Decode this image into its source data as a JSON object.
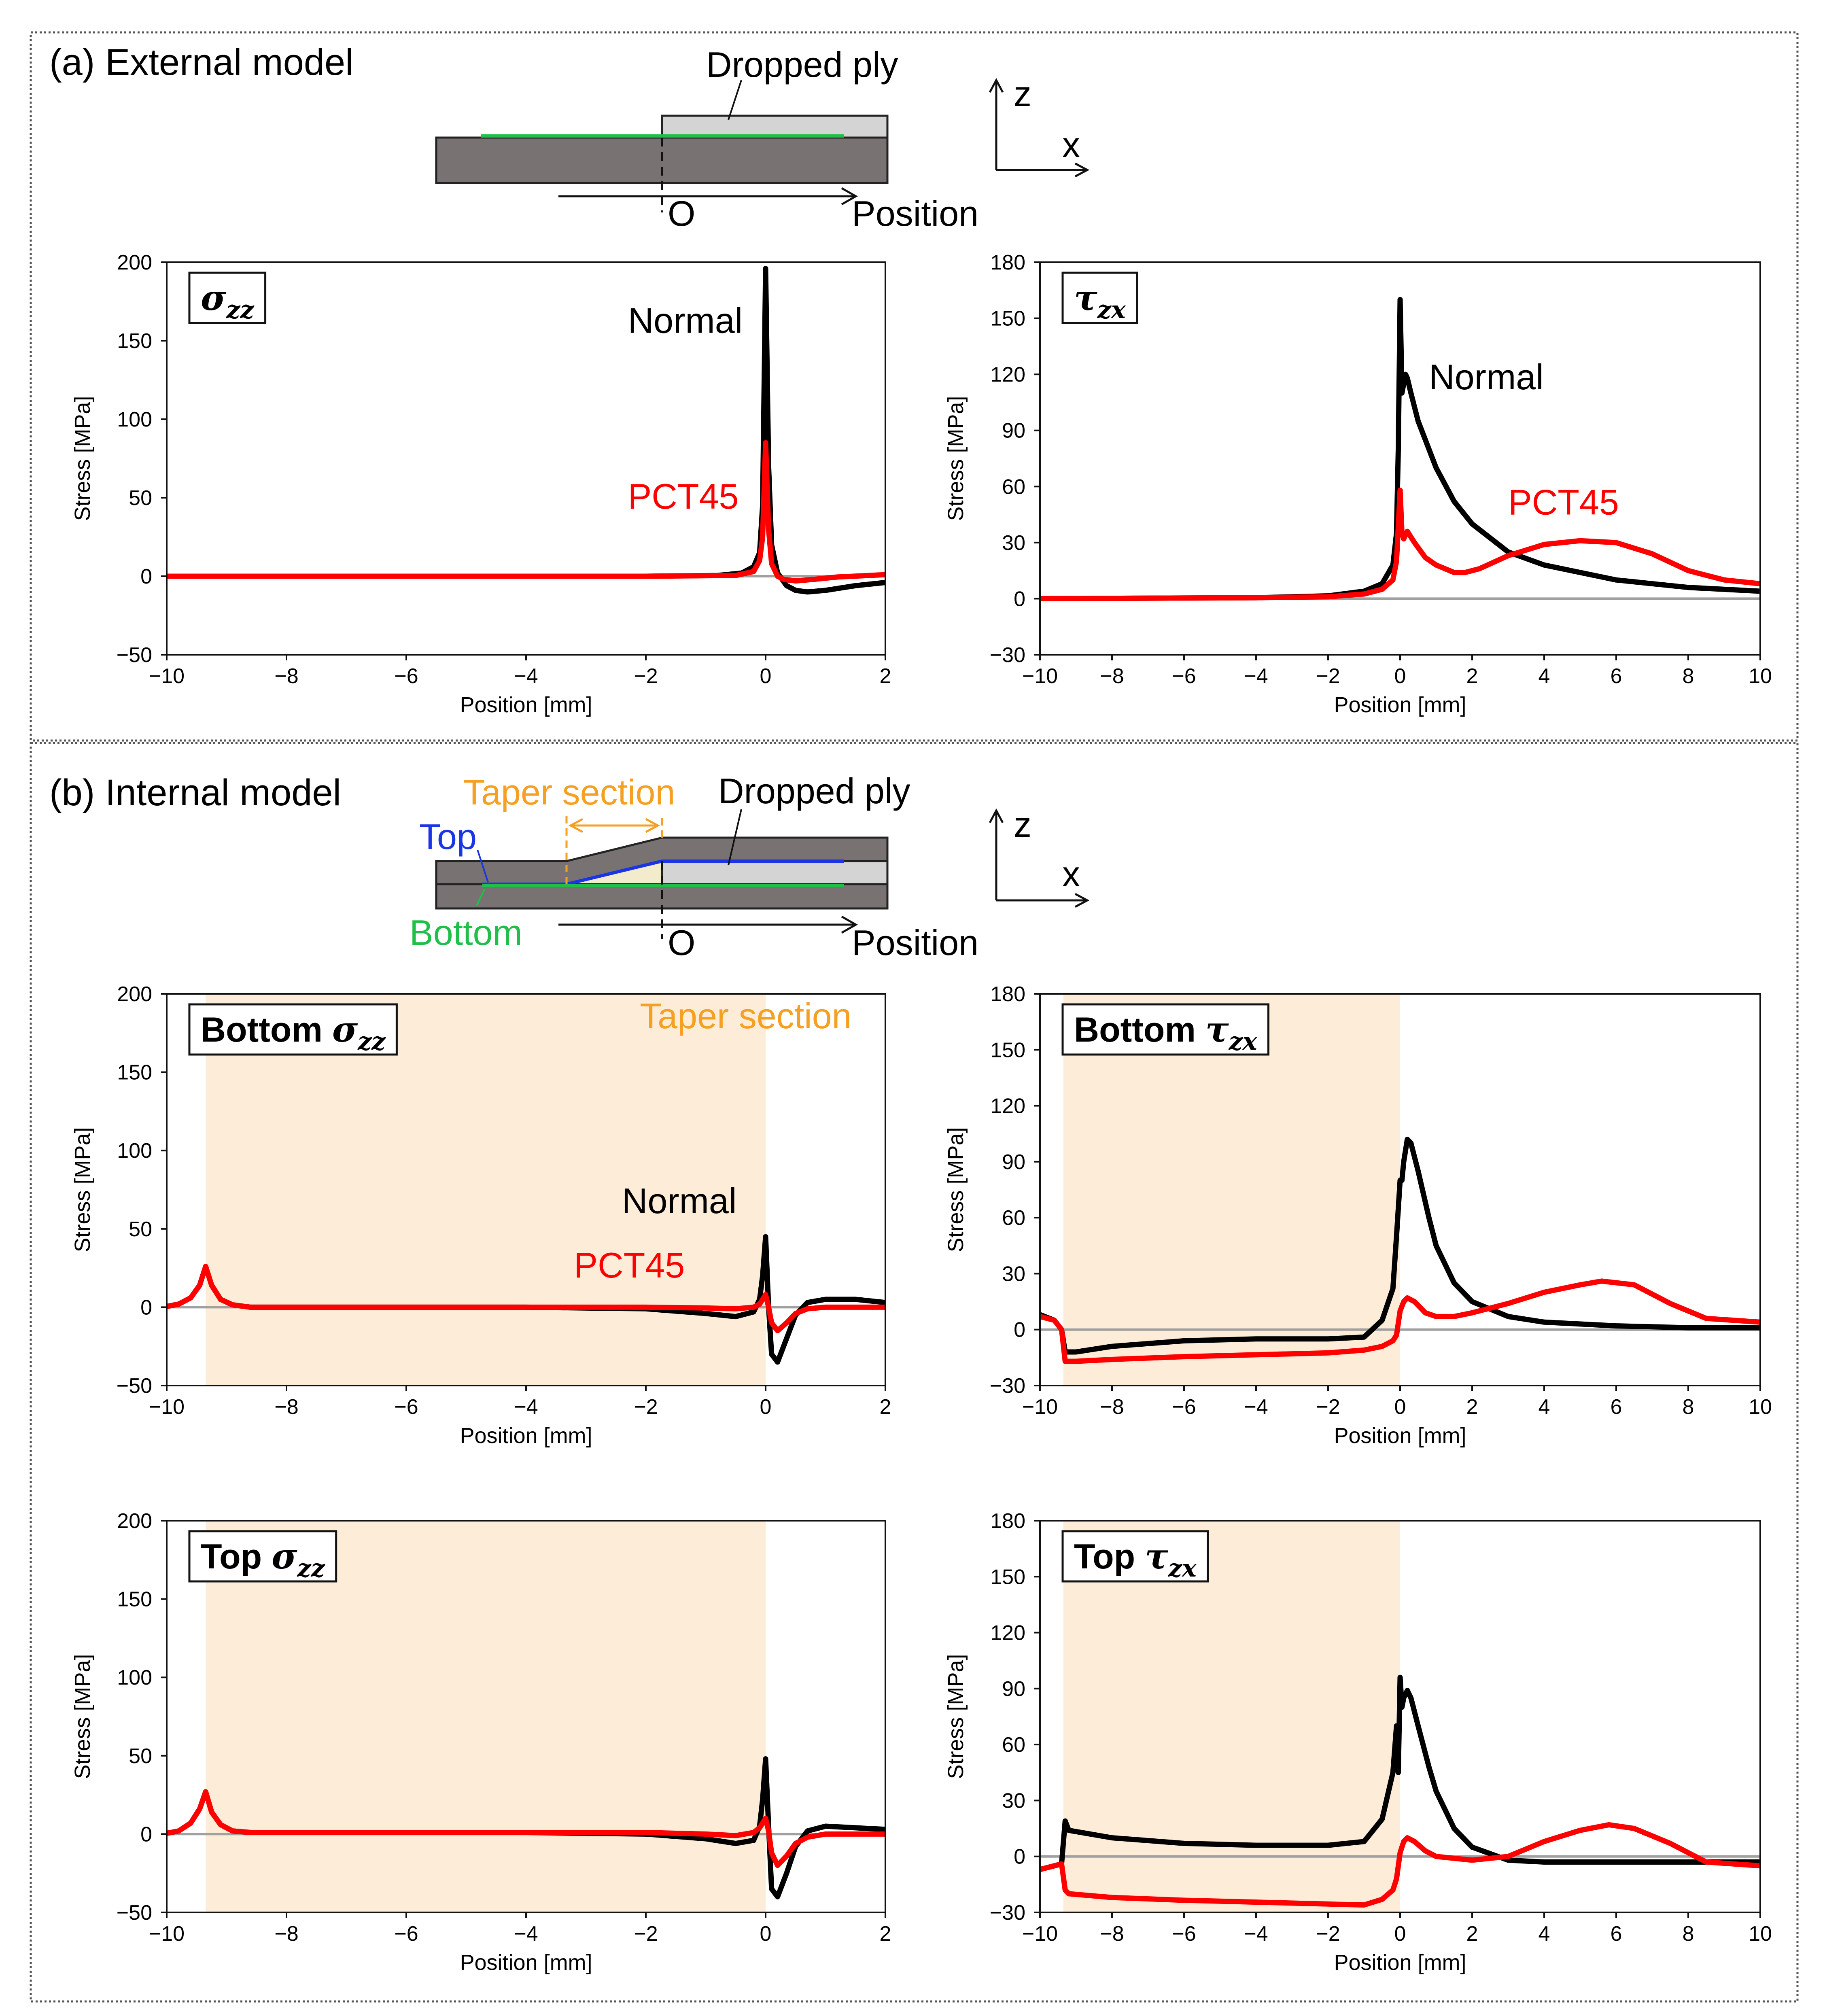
{
  "panels": {
    "a": {
      "label": "(a) External model",
      "dropped_ply": "Dropped ply",
      "origin": "O",
      "position": "Position",
      "axis_z": "z",
      "axis_x": "x"
    },
    "b": {
      "label": "(b) Internal model",
      "dropped_ply": "Dropped ply",
      "taper_section": "Taper section",
      "top": "Top",
      "bottom": "Bottom",
      "origin": "O",
      "position": "Position",
      "axis_z": "z",
      "axis_x": "x"
    }
  },
  "colors": {
    "normal": "#000000",
    "pct45": "#ff0000",
    "taper_fill": "#fdecd7",
    "taper_text": "#f5a023",
    "green": "#1fbf4a",
    "blue": "#1a35e6",
    "dark_ply": "#787272",
    "light_ply": "#d4d4d4",
    "zero_line": "#a0a0a0"
  },
  "chart_data": [
    {
      "id": "a-szz",
      "type": "line",
      "title_prefix": "",
      "symbol": "σ",
      "subscript": "zz",
      "xlabel": "Position [mm]",
      "ylabel": "Stress [MPa]",
      "xlim": [
        -10,
        2
      ],
      "ylim": [
        -50,
        200
      ],
      "xticks": [
        -10,
        -8,
        -6,
        -4,
        -2,
        0,
        2
      ],
      "yticks": [
        -50,
        0,
        50,
        100,
        150,
        200
      ],
      "taper": null,
      "labels": [
        {
          "text": "Normal",
          "x": -2.3,
          "y": 155,
          "color": "normal"
        },
        {
          "text": "PCT45",
          "x": -2.3,
          "y": 43,
          "color": "pct45"
        }
      ],
      "series": [
        {
          "name": "Normal",
          "color": "normal",
          "x": [
            -10,
            -2,
            -0.8,
            -0.4,
            -0.2,
            -0.1,
            -0.05,
            0,
            0.05,
            0.1,
            0.2,
            0.35,
            0.5,
            0.7,
            1.0,
            1.5,
            2
          ],
          "y": [
            0,
            0,
            0.5,
            2,
            6,
            15,
            45,
            196,
            70,
            20,
            2,
            -6,
            -9,
            -10,
            -9,
            -6,
            -4
          ]
        },
        {
          "name": "PCT45",
          "color": "pct45",
          "x": [
            -10,
            -2,
            -0.5,
            -0.2,
            -0.1,
            -0.05,
            0,
            0.05,
            0.1,
            0.2,
            0.3,
            0.5,
            0.8,
            1.2,
            2
          ],
          "y": [
            0,
            0,
            0.5,
            3,
            10,
            25,
            85,
            30,
            8,
            0,
            -2,
            -3,
            -2,
            -0.5,
            1
          ]
        }
      ]
    },
    {
      "id": "a-tzx",
      "type": "line",
      "title_prefix": "",
      "symbol": "τ",
      "subscript": "zx",
      "xlabel": "Position [mm]",
      "ylabel": "Stress [MPa]",
      "xlim": [
        -10,
        10
      ],
      "ylim": [
        -30,
        180
      ],
      "xticks": [
        -10,
        -8,
        -6,
        -4,
        -2,
        0,
        2,
        4,
        6,
        8,
        10
      ],
      "yticks": [
        -30,
        0,
        30,
        60,
        90,
        120,
        150,
        180
      ],
      "taper": null,
      "labels": [
        {
          "text": "Normal",
          "x": 0.8,
          "y": 112,
          "color": "normal"
        },
        {
          "text": "PCT45",
          "x": 3,
          "y": 45,
          "color": "pct45"
        }
      ],
      "series": [
        {
          "name": "Normal",
          "color": "normal",
          "x": [
            -10,
            -4,
            -2,
            -1,
            -0.5,
            -0.2,
            -0.1,
            -0.05,
            0,
            0.05,
            0.1,
            0.15,
            0.2,
            0.3,
            0.5,
            1,
            1.5,
            2,
            3,
            4,
            6,
            8,
            10
          ],
          "y": [
            0,
            0.5,
            1.5,
            4,
            8,
            18,
            35,
            80,
            160,
            110,
            115,
            120,
            118,
            110,
            95,
            70,
            52,
            40,
            25,
            18,
            10,
            6,
            4
          ]
        },
        {
          "name": "PCT45",
          "color": "pct45",
          "x": [
            -10,
            -4,
            -2,
            -1,
            -0.5,
            -0.2,
            -0.1,
            0,
            0.05,
            0.1,
            0.2,
            0.4,
            0.7,
            1,
            1.5,
            1.8,
            2.2,
            3,
            4,
            5,
            6,
            7,
            8,
            9,
            10
          ],
          "y": [
            0,
            0.5,
            1,
            2.5,
            5,
            10,
            20,
            58,
            35,
            32,
            36,
            30,
            22,
            18,
            14,
            14,
            16,
            23,
            29,
            31,
            30,
            24,
            15,
            10,
            8
          ]
        }
      ]
    },
    {
      "id": "b-bottom-szz",
      "type": "line",
      "title_prefix": "Bottom",
      "symbol": "σ",
      "subscript": "zz",
      "xlabel": "Position [mm]",
      "ylabel": "Stress [MPa]",
      "xlim": [
        -10,
        2
      ],
      "ylim": [
        -50,
        200
      ],
      "xticks": [
        -10,
        -8,
        -6,
        -4,
        -2,
        0,
        2
      ],
      "yticks": [
        -50,
        0,
        50,
        100,
        150,
        200
      ],
      "taper": {
        "x0": -9.35,
        "x1": 0,
        "label": "Taper section",
        "label_x": -2.1,
        "label_y": 178
      },
      "labels": [
        {
          "text": "Normal",
          "x": -2.4,
          "y": 60,
          "color": "normal"
        },
        {
          "text": "PCT45",
          "x": -3.2,
          "y": 19,
          "color": "pct45"
        }
      ],
      "series": [
        {
          "name": "Normal",
          "color": "normal",
          "x": [
            -10,
            -9.8,
            -9.6,
            -9.45,
            -9.35,
            -9.25,
            -9.1,
            -8.9,
            -8.6,
            -8,
            -4,
            -2,
            -1,
            -0.5,
            -0.2,
            -0.1,
            -0.05,
            0,
            0.05,
            0.1,
            0.2,
            0.35,
            0.5,
            0.7,
            1,
            1.5,
            2
          ],
          "y": [
            0.5,
            2,
            6,
            14,
            26,
            14,
            5,
            1.5,
            0,
            0,
            0,
            -1,
            -4,
            -6,
            -3,
            5,
            20,
            45,
            0,
            -30,
            -35,
            -20,
            -5,
            3,
            5,
            5,
            3
          ]
        },
        {
          "name": "PCT45",
          "color": "pct45",
          "x": [
            -10,
            -9.8,
            -9.6,
            -9.45,
            -9.35,
            -9.25,
            -9.1,
            -8.9,
            -8.6,
            -8,
            -4,
            -2,
            -1,
            -0.5,
            -0.2,
            -0.1,
            0,
            0.05,
            0.1,
            0.2,
            0.35,
            0.5,
            0.7,
            1,
            1.5,
            2
          ],
          "y": [
            0.5,
            2,
            6,
            14,
            26,
            14,
            5,
            1.5,
            0,
            0,
            0,
            0,
            -0.5,
            -1,
            0,
            2,
            8,
            0,
            -10,
            -15,
            -10,
            -4,
            -1,
            0,
            0,
            0
          ]
        }
      ]
    },
    {
      "id": "b-bottom-tzx",
      "type": "line",
      "title_prefix": "Bottom",
      "symbol": "τ",
      "subscript": "zx",
      "xlabel": "Position [mm]",
      "ylabel": "Stress [MPa]",
      "xlim": [
        -10,
        10
      ],
      "ylim": [
        -30,
        180
      ],
      "xticks": [
        -10,
        -8,
        -6,
        -4,
        -2,
        0,
        2,
        4,
        6,
        8,
        10
      ],
      "yticks": [
        -30,
        0,
        30,
        60,
        90,
        120,
        150,
        180
      ],
      "taper": {
        "x0": -9.35,
        "x1": 0,
        "label": "",
        "label_x": 0,
        "label_y": 0
      },
      "labels": [],
      "series": [
        {
          "name": "Normal",
          "color": "normal",
          "x": [
            -10,
            -9.6,
            -9.4,
            -9.3,
            -9,
            -8,
            -6,
            -4,
            -2,
            -1,
            -0.5,
            -0.2,
            -0.1,
            0,
            0.05,
            0.1,
            0.2,
            0.3,
            0.5,
            0.8,
            1,
            1.5,
            2,
            3,
            4,
            6,
            8,
            10
          ],
          "y": [
            8,
            5,
            0,
            -12,
            -12,
            -9,
            -6,
            -5,
            -5,
            -4,
            5,
            22,
            50,
            80,
            80,
            90,
            102,
            100,
            85,
            60,
            45,
            25,
            15,
            7,
            4,
            2,
            1,
            1
          ]
        },
        {
          "name": "PCT45",
          "color": "pct45",
          "x": [
            -10,
            -9.6,
            -9.4,
            -9.3,
            -9,
            -8,
            -6,
            -4,
            -2,
            -1,
            -0.5,
            -0.2,
            -0.1,
            0,
            0.1,
            0.2,
            0.4,
            0.7,
            1,
            1.5,
            2,
            3,
            4,
            5,
            5.6,
            6.5,
            7.5,
            8.5,
            10
          ],
          "y": [
            7,
            5,
            0,
            -17,
            -17,
            -16,
            -14.5,
            -13.5,
            -12.5,
            -11,
            -9,
            -6,
            -3,
            10,
            15,
            17,
            15,
            9,
            7,
            7,
            9,
            14,
            20,
            24,
            26,
            24,
            14,
            6,
            4
          ]
        }
      ]
    },
    {
      "id": "b-top-szz",
      "type": "line",
      "title_prefix": "Top",
      "symbol": "σ",
      "subscript": "zz",
      "xlabel": "Position [mm]",
      "ylabel": "Stress [MPa]",
      "xlim": [
        -10,
        2
      ],
      "ylim": [
        -50,
        200
      ],
      "xticks": [
        -10,
        -8,
        -6,
        -4,
        -2,
        0,
        2
      ],
      "yticks": [
        -50,
        0,
        50,
        100,
        150,
        200
      ],
      "taper": {
        "x0": -9.35,
        "x1": 0,
        "label": "",
        "label_x": 0,
        "label_y": 0
      },
      "labels": [],
      "series": [
        {
          "name": "Normal",
          "color": "normal",
          "x": [
            -10,
            -9.8,
            -9.6,
            -9.45,
            -9.35,
            -9.25,
            -9.1,
            -8.9,
            -8.6,
            -8,
            -4,
            -2,
            -1,
            -0.5,
            -0.2,
            -0.1,
            -0.05,
            0,
            0.05,
            0.1,
            0.2,
            0.35,
            0.5,
            0.7,
            1,
            1.5,
            2
          ],
          "y": [
            0.5,
            2,
            7,
            16,
            27,
            14,
            6,
            2,
            1,
            1,
            1,
            0,
            -3,
            -6,
            -4,
            5,
            22,
            48,
            5,
            -35,
            -40,
            -25,
            -8,
            2,
            5,
            4,
            3
          ]
        },
        {
          "name": "PCT45",
          "color": "pct45",
          "x": [
            -10,
            -9.8,
            -9.6,
            -9.45,
            -9.35,
            -9.25,
            -9.1,
            -8.9,
            -8.6,
            -8,
            -4,
            -2,
            -1,
            -0.5,
            -0.2,
            -0.1,
            0,
            0.05,
            0.1,
            0.2,
            0.35,
            0.5,
            0.7,
            1,
            1.5,
            2
          ],
          "y": [
            0.5,
            2,
            7,
            16,
            27,
            14,
            6,
            2,
            1,
            1,
            1,
            1,
            0,
            -1,
            1,
            4,
            10,
            2,
            -12,
            -20,
            -14,
            -6,
            -2,
            0,
            0,
            0
          ]
        }
      ]
    },
    {
      "id": "b-top-tzx",
      "type": "line",
      "title_prefix": "Top",
      "symbol": "τ",
      "subscript": "zx",
      "xlabel": "Position [mm]",
      "ylabel": "Stress [MPa]",
      "xlim": [
        -10,
        10
      ],
      "ylim": [
        -30,
        180
      ],
      "xticks": [
        -10,
        -8,
        -6,
        -4,
        -2,
        0,
        2,
        4,
        6,
        8,
        10
      ],
      "yticks": [
        -30,
        0,
        30,
        60,
        90,
        120,
        150,
        180
      ],
      "taper": {
        "x0": -9.35,
        "x1": 0,
        "label": "",
        "label_x": 0,
        "label_y": 0
      },
      "labels": [],
      "series": [
        {
          "name": "Normal",
          "color": "normal",
          "x": [
            -10,
            -9.6,
            -9.4,
            -9.3,
            -9.2,
            -8,
            -6,
            -4,
            -2,
            -1,
            -0.5,
            -0.2,
            -0.1,
            -0.05,
            0,
            0.05,
            0.1,
            0.2,
            0.3,
            0.5,
            0.8,
            1,
            1.5,
            2,
            3,
            4,
            6,
            8,
            10
          ],
          "y": [
            -7,
            -5,
            -4,
            19,
            14,
            10,
            7,
            6,
            6,
            8,
            20,
            45,
            70,
            45,
            96,
            80,
            85,
            89,
            85,
            70,
            48,
            35,
            15,
            5,
            -2,
            -3,
            -3,
            -3,
            -3
          ]
        },
        {
          "name": "PCT45",
          "color": "pct45",
          "x": [
            -10,
            -9.6,
            -9.4,
            -9.3,
            -9.2,
            -8,
            -6,
            -4,
            -2,
            -1,
            -0.5,
            -0.2,
            -0.1,
            0,
            0.1,
            0.2,
            0.4,
            0.7,
            1,
            1.5,
            2,
            3,
            4,
            5,
            5.8,
            6.5,
            7.5,
            8.5,
            10
          ],
          "y": [
            -7,
            -5,
            -4,
            -18,
            -20,
            -22,
            -23.5,
            -24.5,
            -25.5,
            -26,
            -23,
            -18,
            -12,
            2,
            8,
            10,
            8,
            3,
            0,
            -1,
            -2,
            0,
            8,
            14,
            17,
            15,
            7,
            -3,
            -5
          ]
        }
      ]
    }
  ]
}
